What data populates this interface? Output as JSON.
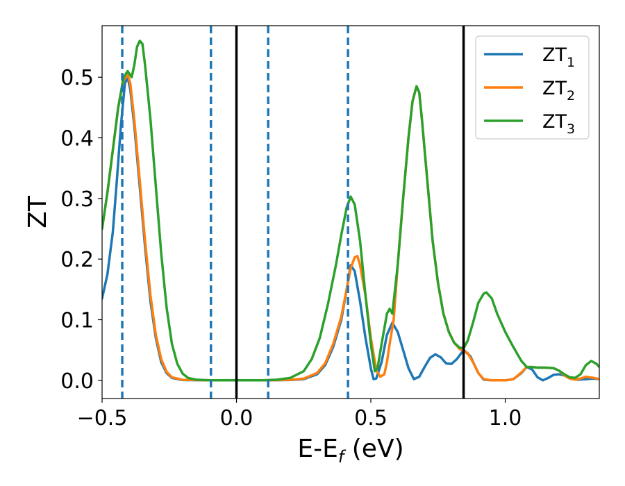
{
  "chart_data": {
    "type": "line",
    "xlabel": "E-E",
    "xlabel_sub": "f",
    "xlabel_unit": " (eV)",
    "ylabel": "ZT",
    "xlim": [
      -0.5,
      1.35
    ],
    "ylim": [
      -0.03,
      0.585
    ],
    "grid": false,
    "legend_position": "top-right",
    "xticks": [
      -0.5,
      0.0,
      0.5,
      1.0
    ],
    "xtick_labels": [
      "−0.5",
      "0.0",
      "0.5",
      "1.0"
    ],
    "yticks": [
      0.0,
      0.1,
      0.2,
      0.3,
      0.4,
      0.5
    ],
    "ytick_labels": [
      "0.0",
      "0.1",
      "0.2",
      "0.3",
      "0.4",
      "0.5"
    ],
    "solid_vlines": [
      0.0,
      0.845
    ],
    "dashed_vlines": [
      -0.425,
      -0.095,
      0.118,
      0.415
    ],
    "series": [
      {
        "name": "ZT",
        "subscript": "1",
        "color": "#1f77b4",
        "points": [
          [
            -0.5,
            0.135
          ],
          [
            -0.48,
            0.175
          ],
          [
            -0.46,
            0.245
          ],
          [
            -0.445,
            0.33
          ],
          [
            -0.43,
            0.42
          ],
          [
            -0.415,
            0.49
          ],
          [
            -0.405,
            0.5
          ],
          [
            -0.395,
            0.48
          ],
          [
            -0.38,
            0.42
          ],
          [
            -0.36,
            0.32
          ],
          [
            -0.34,
            0.22
          ],
          [
            -0.32,
            0.13
          ],
          [
            -0.3,
            0.07
          ],
          [
            -0.28,
            0.03
          ],
          [
            -0.26,
            0.012
          ],
          [
            -0.24,
            0.004
          ],
          [
            -0.2,
            0.0005
          ],
          [
            -0.1,
            0.0
          ],
          [
            0.0,
            0.0
          ],
          [
            0.1,
            0.0
          ],
          [
            0.2,
            0.0005
          ],
          [
            0.25,
            0.002
          ],
          [
            0.3,
            0.01
          ],
          [
            0.33,
            0.025
          ],
          [
            0.36,
            0.055
          ],
          [
            0.39,
            0.1
          ],
          [
            0.41,
            0.15
          ],
          [
            0.425,
            0.19
          ],
          [
            0.44,
            0.18
          ],
          [
            0.46,
            0.13
          ],
          [
            0.48,
            0.07
          ],
          [
            0.5,
            0.02
          ],
          [
            0.51,
            0.002
          ],
          [
            0.52,
            0.003
          ],
          [
            0.54,
            0.03
          ],
          [
            0.56,
            0.075
          ],
          [
            0.58,
            0.095
          ],
          [
            0.6,
            0.08
          ],
          [
            0.62,
            0.05
          ],
          [
            0.64,
            0.02
          ],
          [
            0.66,
            0.002
          ],
          [
            0.68,
            0.006
          ],
          [
            0.7,
            0.022
          ],
          [
            0.72,
            0.037
          ],
          [
            0.74,
            0.043
          ],
          [
            0.76,
            0.038
          ],
          [
            0.78,
            0.028
          ],
          [
            0.8,
            0.027
          ],
          [
            0.82,
            0.035
          ],
          [
            0.845,
            0.05
          ],
          [
            0.87,
            0.04
          ],
          [
            0.9,
            0.012
          ],
          [
            0.92,
            0.001
          ],
          [
            0.95,
            0.0
          ],
          [
            1.0,
            0.0
          ],
          [
            1.03,
            0.002
          ],
          [
            1.06,
            0.012
          ],
          [
            1.08,
            0.022
          ],
          [
            1.1,
            0.018
          ],
          [
            1.12,
            0.005
          ],
          [
            1.14,
            0.0
          ],
          [
            1.16,
            0.004
          ],
          [
            1.18,
            0.009
          ],
          [
            1.2,
            0.01
          ],
          [
            1.22,
            0.008
          ],
          [
            1.25,
            0.003
          ],
          [
            1.27,
            0.001
          ],
          [
            1.3,
            0.002
          ],
          [
            1.33,
            0.003
          ],
          [
            1.35,
            0.002
          ]
        ]
      },
      {
        "name": "ZT",
        "subscript": "2",
        "color": "#ff7f0e",
        "points": [
          [
            -0.5,
            0.25
          ],
          [
            -0.48,
            0.31
          ],
          [
            -0.46,
            0.38
          ],
          [
            -0.44,
            0.45
          ],
          [
            -0.42,
            0.495
          ],
          [
            -0.405,
            0.505
          ],
          [
            -0.395,
            0.49
          ],
          [
            -0.38,
            0.43
          ],
          [
            -0.36,
            0.33
          ],
          [
            -0.34,
            0.23
          ],
          [
            -0.32,
            0.14
          ],
          [
            -0.3,
            0.075
          ],
          [
            -0.28,
            0.035
          ],
          [
            -0.26,
            0.014
          ],
          [
            -0.24,
            0.005
          ],
          [
            -0.2,
            0.0008
          ],
          [
            -0.1,
            0.0
          ],
          [
            0.0,
            0.0
          ],
          [
            0.1,
            0.0
          ],
          [
            0.2,
            0.0008
          ],
          [
            0.25,
            0.003
          ],
          [
            0.3,
            0.012
          ],
          [
            0.33,
            0.028
          ],
          [
            0.36,
            0.06
          ],
          [
            0.39,
            0.105
          ],
          [
            0.41,
            0.15
          ],
          [
            0.425,
            0.185
          ],
          [
            0.44,
            0.203
          ],
          [
            0.45,
            0.205
          ],
          [
            0.46,
            0.19
          ],
          [
            0.48,
            0.14
          ],
          [
            0.5,
            0.07
          ],
          [
            0.52,
            0.017
          ],
          [
            0.535,
            0.006
          ],
          [
            0.55,
            0.01
          ],
          [
            0.56,
            0.03
          ],
          [
            0.57,
            0.06
          ],
          [
            0.585,
            0.1
          ],
          [
            0.6,
            0.19
          ],
          [
            0.62,
            0.3
          ],
          [
            0.64,
            0.4
          ],
          [
            0.655,
            0.46
          ],
          [
            0.67,
            0.485
          ],
          [
            0.68,
            0.475
          ],
          [
            0.69,
            0.43
          ],
          [
            0.71,
            0.33
          ],
          [
            0.73,
            0.23
          ],
          [
            0.75,
            0.16
          ],
          [
            0.77,
            0.11
          ],
          [
            0.79,
            0.08
          ],
          [
            0.81,
            0.062
          ],
          [
            0.83,
            0.052
          ],
          [
            0.845,
            0.048
          ],
          [
            0.86,
            0.045
          ],
          [
            0.88,
            0.03
          ],
          [
            0.9,
            0.012
          ],
          [
            0.92,
            0.002
          ],
          [
            0.95,
            0.0
          ],
          [
            1.0,
            0.0
          ],
          [
            1.03,
            0.002
          ],
          [
            1.06,
            0.013
          ],
          [
            1.08,
            0.022
          ],
          [
            1.1,
            0.022
          ],
          [
            1.12,
            0.021
          ],
          [
            1.15,
            0.021
          ],
          [
            1.18,
            0.02
          ],
          [
            1.2,
            0.016
          ],
          [
            1.22,
            0.008
          ],
          [
            1.24,
            0.003
          ],
          [
            1.26,
            0.001
          ],
          [
            1.28,
            0.003
          ],
          [
            1.3,
            0.006
          ],
          [
            1.33,
            0.004
          ],
          [
            1.35,
            0.002
          ]
        ]
      },
      {
        "name": "ZT",
        "subscript": "3",
        "color": "#2ca02c",
        "points": [
          [
            -0.5,
            0.25
          ],
          [
            -0.48,
            0.31
          ],
          [
            -0.46,
            0.38
          ],
          [
            -0.44,
            0.45
          ],
          [
            -0.42,
            0.5
          ],
          [
            -0.405,
            0.51
          ],
          [
            -0.39,
            0.5
          ],
          [
            -0.38,
            0.52
          ],
          [
            -0.37,
            0.55
          ],
          [
            -0.36,
            0.56
          ],
          [
            -0.35,
            0.555
          ],
          [
            -0.34,
            0.52
          ],
          [
            -0.32,
            0.43
          ],
          [
            -0.3,
            0.32
          ],
          [
            -0.28,
            0.21
          ],
          [
            -0.26,
            0.12
          ],
          [
            -0.24,
            0.06
          ],
          [
            -0.22,
            0.027
          ],
          [
            -0.2,
            0.011
          ],
          [
            -0.18,
            0.004
          ],
          [
            -0.15,
            0.001
          ],
          [
            -0.1,
            0.0
          ],
          [
            0.0,
            0.0
          ],
          [
            0.1,
            0.0
          ],
          [
            0.15,
            0.001
          ],
          [
            0.2,
            0.004
          ],
          [
            0.25,
            0.015
          ],
          [
            0.28,
            0.035
          ],
          [
            0.31,
            0.07
          ],
          [
            0.34,
            0.125
          ],
          [
            0.37,
            0.19
          ],
          [
            0.39,
            0.24
          ],
          [
            0.41,
            0.285
          ],
          [
            0.425,
            0.303
          ],
          [
            0.44,
            0.29
          ],
          [
            0.46,
            0.23
          ],
          [
            0.48,
            0.14
          ],
          [
            0.5,
            0.06
          ],
          [
            0.515,
            0.015
          ],
          [
            0.525,
            0.02
          ],
          [
            0.54,
            0.06
          ],
          [
            0.56,
            0.11
          ],
          [
            0.57,
            0.118
          ],
          [
            0.58,
            0.11
          ],
          [
            0.6,
            0.19
          ],
          [
            0.62,
            0.3
          ],
          [
            0.64,
            0.4
          ],
          [
            0.655,
            0.46
          ],
          [
            0.67,
            0.485
          ],
          [
            0.68,
            0.475
          ],
          [
            0.69,
            0.43
          ],
          [
            0.71,
            0.33
          ],
          [
            0.73,
            0.23
          ],
          [
            0.75,
            0.16
          ],
          [
            0.77,
            0.11
          ],
          [
            0.79,
            0.08
          ],
          [
            0.81,
            0.062
          ],
          [
            0.83,
            0.054
          ],
          [
            0.845,
            0.053
          ],
          [
            0.86,
            0.065
          ],
          [
            0.88,
            0.095
          ],
          [
            0.9,
            0.128
          ],
          [
            0.92,
            0.143
          ],
          [
            0.93,
            0.145
          ],
          [
            0.95,
            0.135
          ],
          [
            0.97,
            0.11
          ],
          [
            1.0,
            0.08
          ],
          [
            1.03,
            0.055
          ],
          [
            1.06,
            0.032
          ],
          [
            1.08,
            0.022
          ],
          [
            1.1,
            0.022
          ],
          [
            1.12,
            0.021
          ],
          [
            1.15,
            0.021
          ],
          [
            1.18,
            0.02
          ],
          [
            1.2,
            0.016
          ],
          [
            1.22,
            0.01
          ],
          [
            1.24,
            0.005
          ],
          [
            1.26,
            0.004
          ],
          [
            1.28,
            0.01
          ],
          [
            1.3,
            0.025
          ],
          [
            1.32,
            0.032
          ],
          [
            1.34,
            0.027
          ],
          [
            1.35,
            0.022
          ]
        ]
      }
    ]
  }
}
